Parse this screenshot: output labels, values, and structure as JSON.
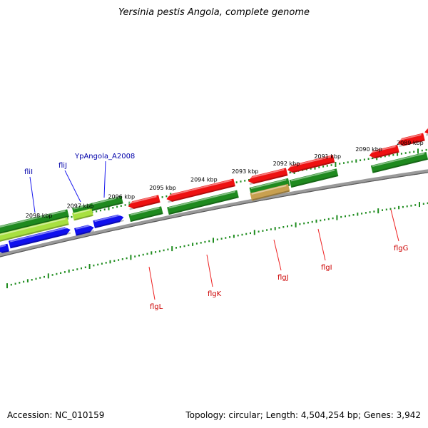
{
  "title": "Yersinia pestis Angola, complete genome",
  "footer": {
    "accession": "Accession: NC_010159",
    "topology": "Topology: circular; Length: 4,504,254 bp; Genes: 3,942"
  },
  "colors": {
    "backbone": "#808080",
    "tick": "#1e8c1e",
    "gene_red": "#ee1111",
    "gene_green": "#1f8a1f",
    "gene_blue": "#1010ee",
    "gene_yellowgreen": "#a8e040",
    "gene_tan": "#c8a050",
    "label_blue": "#0000aa",
    "label_red": "#cc0000"
  },
  "scale_labels": [
    {
      "kbp": 2089,
      "text": "2089 kbp"
    },
    {
      "kbp": 2090,
      "text": "2090 kbp"
    },
    {
      "kbp": 2091,
      "text": "2091 kbp"
    },
    {
      "kbp": 2092,
      "text": "2092 kbp"
    },
    {
      "kbp": 2093,
      "text": "2093 kbp"
    },
    {
      "kbp": 2094,
      "text": "2094 kbp"
    },
    {
      "kbp": 2095,
      "text": "2095 kbp"
    },
    {
      "kbp": 2096,
      "text": "2096 kbp"
    },
    {
      "kbp": 2097,
      "text": "2097 kbp"
    },
    {
      "kbp": 2098,
      "text": "2098 kbp"
    }
  ],
  "gene_labels": [
    {
      "id": "fliI",
      "text": "fliI",
      "color": "blue"
    },
    {
      "id": "fliJ",
      "text": "fliJ",
      "color": "blue"
    },
    {
      "id": "YpAngola_A2008",
      "text": "YpAngola_A2008",
      "color": "blue"
    },
    {
      "id": "flgL",
      "text": "flgL",
      "color": "red"
    },
    {
      "id": "flgK",
      "text": "flgK",
      "color": "red"
    },
    {
      "id": "flgJ",
      "text": "flgJ",
      "color": "red"
    },
    {
      "id": "flgI",
      "text": "flgI",
      "color": "red"
    },
    {
      "id": "flgG",
      "text": "flgG",
      "color": "red"
    }
  ]
}
